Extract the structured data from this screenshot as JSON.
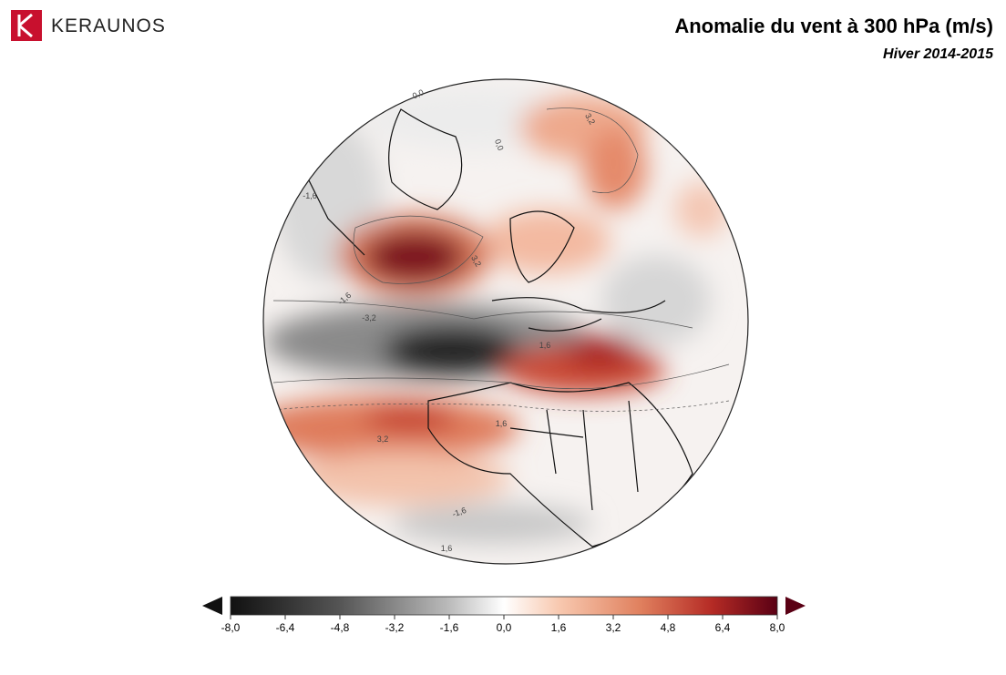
{
  "header": {
    "logo": "KERAUNOS",
    "title": "Anomalie du vent à 300 hPa (m/s)",
    "subtitle": "Hiver 2014-2015"
  },
  "colorbar": {
    "range": [
      -8,
      8
    ],
    "ticks": [
      {
        "value": -8,
        "label": "-8,0"
      },
      {
        "value": -6.4,
        "label": "-6,4"
      },
      {
        "value": -4.8,
        "label": "-4,8"
      },
      {
        "value": -3.2,
        "label": "-3,2"
      },
      {
        "value": -1.6,
        "label": "-1,6"
      },
      {
        "value": 0,
        "label": "0,0"
      },
      {
        "value": 1.6,
        "label": "1,6"
      },
      {
        "value": 3.2,
        "label": "3,2"
      },
      {
        "value": 4.8,
        "label": "4,8"
      },
      {
        "value": 6.4,
        "label": "6,4"
      },
      {
        "value": 8,
        "label": "8,0"
      }
    ]
  },
  "map": {
    "contour_labels": [
      {
        "value": 0,
        "label": "0,0"
      },
      {
        "value": 3.2,
        "label": "3,2"
      },
      {
        "value": 0,
        "label": "0,0"
      },
      {
        "value": -1.6,
        "label": "-1,6"
      },
      {
        "value": 3.2,
        "label": "3,2"
      },
      {
        "value": -1.6,
        "label": "-1,6"
      },
      {
        "value": -3.2,
        "label": "-3,2"
      },
      {
        "value": 1.6,
        "label": "1,6"
      },
      {
        "value": 3.2,
        "label": "3,2"
      },
      {
        "value": 1.6,
        "label": "1,6"
      },
      {
        "value": -1.6,
        "label": "-1,6"
      },
      {
        "value": 1.6,
        "label": "1,6"
      }
    ]
  }
}
